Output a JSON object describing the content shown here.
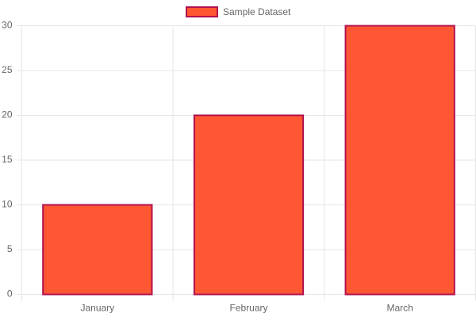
{
  "chart_data": {
    "type": "bar",
    "series": [
      {
        "name": "Sample Dataset",
        "color": "#ff5733",
        "edge_color": "#b0104f",
        "values": [
          10,
          20,
          30
        ]
      }
    ],
    "categories": [
      "January",
      "February",
      "March"
    ],
    "ylim": [
      0,
      30
    ],
    "yticks": [
      0,
      5,
      10,
      15,
      20,
      25,
      30
    ],
    "grid": true,
    "legend": "top"
  }
}
